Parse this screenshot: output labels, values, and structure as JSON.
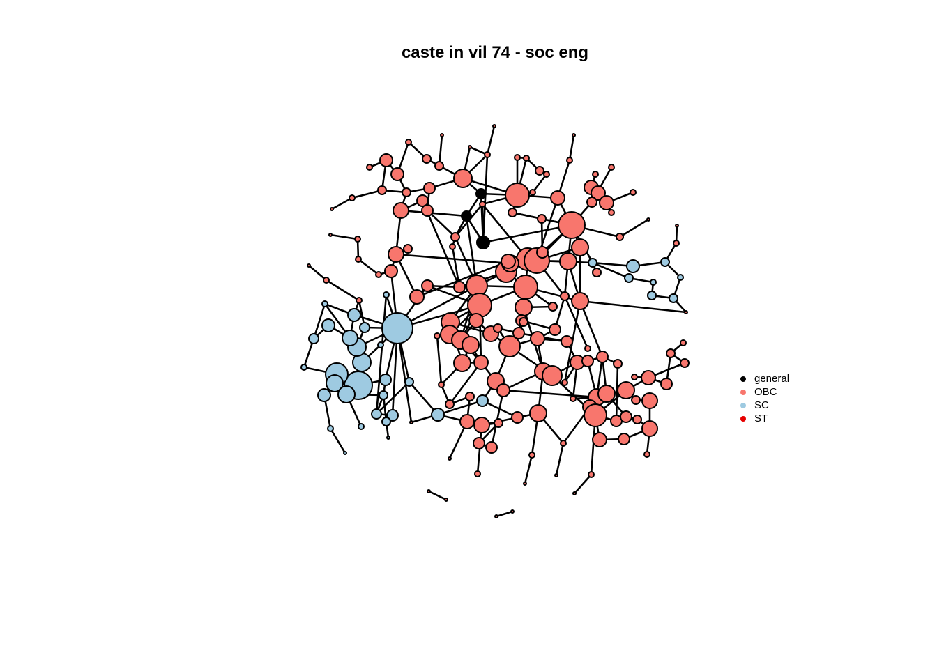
{
  "title": "caste in vil 74 - soc eng",
  "legend": [
    {
      "label": "general",
      "color": "#000000"
    },
    {
      "label": "OBC",
      "color": "#F8766D"
    },
    {
      "label": "SC",
      "color": "#9ECAE1"
    },
    {
      "label": "ST",
      "color": "#E60000"
    }
  ]
}
